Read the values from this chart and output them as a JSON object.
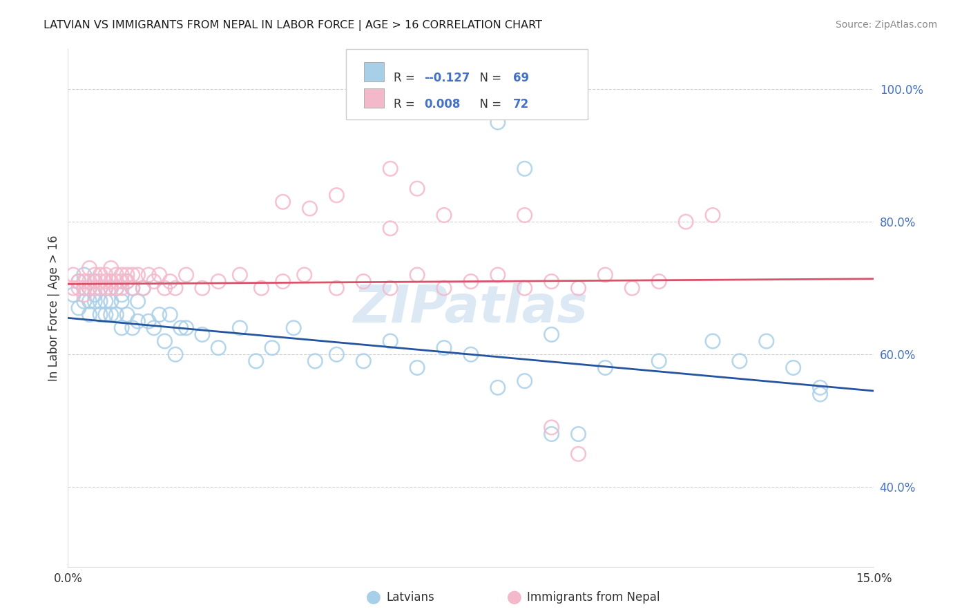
{
  "title": "LATVIAN VS IMMIGRANTS FROM NEPAL IN LABOR FORCE | AGE > 16 CORRELATION CHART",
  "source": "Source: ZipAtlas.com",
  "ylabel": "In Labor Force | Age > 16",
  "xlim": [
    0.0,
    0.15
  ],
  "ylim": [
    0.28,
    1.06
  ],
  "yticks": [
    0.4,
    0.6,
    0.8,
    1.0
  ],
  "ytick_labels": [
    "40.0%",
    "60.0%",
    "80.0%",
    "100.0%"
  ],
  "xtick_labels": [
    "0.0%",
    "15.0%"
  ],
  "legend_r1": "-0.127",
  "legend_n1": "69",
  "legend_r2": "0.008",
  "legend_n2": "72",
  "color_blue": "#a8cfe8",
  "color_pink": "#f4b8cb",
  "line_color_blue": "#2655a0",
  "line_color_pink": "#d9526a",
  "watermark_color": "#c0d8ee",
  "title_color": "#1a1a1a",
  "source_color": "#888888",
  "label_color": "#4472c4",
  "text_color": "#333333",
  "grid_color": "#cccccc",
  "background": "#ffffff",
  "blue_x": [
    0.001,
    0.002,
    0.002,
    0.003,
    0.003,
    0.003,
    0.004,
    0.004,
    0.004,
    0.005,
    0.005,
    0.005,
    0.006,
    0.006,
    0.006,
    0.007,
    0.007,
    0.007,
    0.008,
    0.008,
    0.008,
    0.009,
    0.009,
    0.01,
    0.01,
    0.01,
    0.011,
    0.011,
    0.012,
    0.012,
    0.013,
    0.013,
    0.014,
    0.015,
    0.016,
    0.017,
    0.018,
    0.019,
    0.02,
    0.021,
    0.022,
    0.025,
    0.028,
    0.032,
    0.035,
    0.038,
    0.042,
    0.046,
    0.05,
    0.055,
    0.06,
    0.065,
    0.07,
    0.075,
    0.08,
    0.085,
    0.09,
    0.1,
    0.11,
    0.12,
    0.125,
    0.13,
    0.135,
    0.14,
    0.08,
    0.085,
    0.09,
    0.095,
    0.14
  ],
  "blue_y": [
    0.69,
    0.67,
    0.71,
    0.7,
    0.68,
    0.72,
    0.7,
    0.68,
    0.66,
    0.69,
    0.71,
    0.68,
    0.7,
    0.68,
    0.66,
    0.7,
    0.68,
    0.66,
    0.7,
    0.68,
    0.66,
    0.7,
    0.66,
    0.69,
    0.64,
    0.68,
    0.71,
    0.66,
    0.7,
    0.64,
    0.65,
    0.68,
    0.7,
    0.65,
    0.64,
    0.66,
    0.62,
    0.66,
    0.6,
    0.64,
    0.64,
    0.63,
    0.61,
    0.64,
    0.59,
    0.61,
    0.64,
    0.59,
    0.6,
    0.59,
    0.62,
    0.58,
    0.61,
    0.6,
    0.55,
    0.56,
    0.63,
    0.58,
    0.59,
    0.62,
    0.59,
    0.62,
    0.58,
    0.55,
    0.95,
    0.88,
    0.48,
    0.48,
    0.54
  ],
  "pink_x": [
    0.001,
    0.001,
    0.002,
    0.002,
    0.003,
    0.003,
    0.003,
    0.004,
    0.004,
    0.004,
    0.005,
    0.005,
    0.005,
    0.006,
    0.006,
    0.006,
    0.007,
    0.007,
    0.007,
    0.008,
    0.008,
    0.008,
    0.009,
    0.009,
    0.009,
    0.01,
    0.01,
    0.01,
    0.011,
    0.011,
    0.012,
    0.012,
    0.013,
    0.014,
    0.015,
    0.016,
    0.017,
    0.018,
    0.019,
    0.02,
    0.022,
    0.025,
    0.028,
    0.032,
    0.036,
    0.04,
    0.044,
    0.05,
    0.055,
    0.06,
    0.065,
    0.07,
    0.075,
    0.08,
    0.085,
    0.09,
    0.095,
    0.1,
    0.105,
    0.11,
    0.06,
    0.065,
    0.07,
    0.04,
    0.045,
    0.05,
    0.06,
    0.115,
    0.12,
    0.085,
    0.09,
    0.095
  ],
  "pink_y": [
    0.7,
    0.72,
    0.7,
    0.71,
    0.7,
    0.71,
    0.69,
    0.73,
    0.7,
    0.71,
    0.72,
    0.71,
    0.7,
    0.72,
    0.71,
    0.7,
    0.72,
    0.71,
    0.7,
    0.73,
    0.71,
    0.7,
    0.72,
    0.71,
    0.7,
    0.72,
    0.71,
    0.7,
    0.72,
    0.71,
    0.72,
    0.7,
    0.72,
    0.7,
    0.72,
    0.71,
    0.72,
    0.7,
    0.71,
    0.7,
    0.72,
    0.7,
    0.71,
    0.72,
    0.7,
    0.71,
    0.72,
    0.7,
    0.71,
    0.7,
    0.72,
    0.7,
    0.71,
    0.72,
    0.7,
    0.71,
    0.7,
    0.72,
    0.7,
    0.71,
    0.88,
    0.85,
    0.81,
    0.83,
    0.82,
    0.84,
    0.79,
    0.8,
    0.81,
    0.81,
    0.49,
    0.45
  ]
}
